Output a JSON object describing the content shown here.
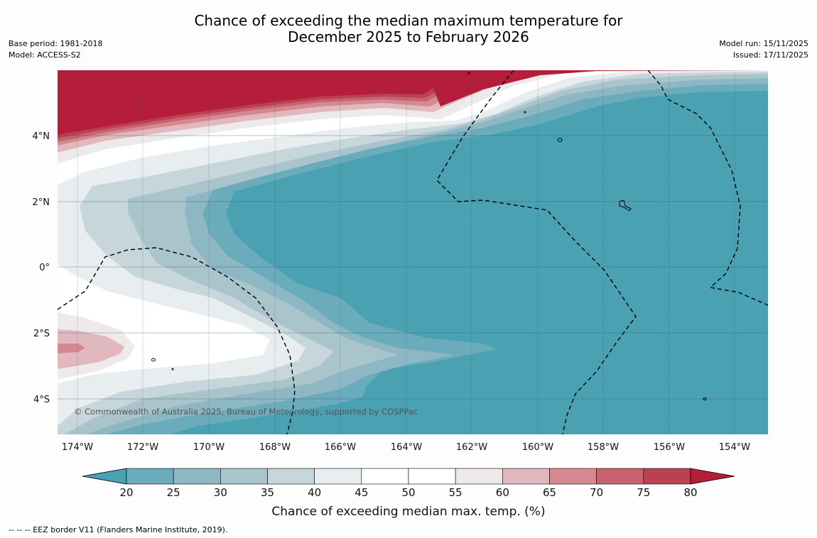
{
  "title_line1": "Chance of exceeding the median maximum temperature for",
  "title_line2": "December 2025 to February 2026",
  "base_period": "Base period: 1981-2018",
  "model": "Model: ACCESS-S2",
  "model_run": "Model run: 15/11/2025",
  "issued": "Issued: 17/11/2025",
  "copyright": "© Commonwealth of Australia 2025, Bureau of Meteorology, supported by COSPPac",
  "footnote": "--  --  -- EEZ border V11 (Flanders Marine Institute, 2019).",
  "lon_ticks": [
    "174°W",
    "172°W",
    "170°W",
    "168°W",
    "166°W",
    "164°W",
    "162°W",
    "160°W",
    "158°W",
    "156°W",
    "154°W"
  ],
  "lat_ticks": [
    "4°N",
    "2°N",
    "0°",
    "2°S",
    "4°S"
  ],
  "colorbar": {
    "title": "Chance of exceeding median max. temp. (%)",
    "labels": [
      "20",
      "25",
      "30",
      "35",
      "40",
      "45",
      "50",
      "55",
      "60",
      "65",
      "70",
      "75",
      "80"
    ],
    "colors": [
      "#6aacbb",
      "#8db7c3",
      "#a9c5cb",
      "#c6d6da",
      "#e8eeef",
      "#ffffff",
      "#ffffff",
      "#eeeaeb",
      "#e1b8be",
      "#d48890",
      "#c6636f",
      "#bb4150"
    ],
    "under_color": "#49a1b2",
    "over_color": "#b41e3b"
  }
}
